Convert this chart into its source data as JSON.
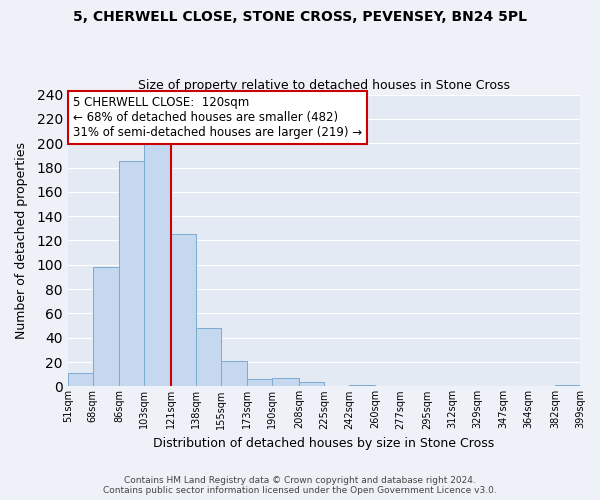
{
  "title": "5, CHERWELL CLOSE, STONE CROSS, PEVENSEY, BN24 5PL",
  "subtitle": "Size of property relative to detached houses in Stone Cross",
  "xlabel": "Distribution of detached houses by size in Stone Cross",
  "ylabel": "Number of detached properties",
  "bar_edges": [
    51,
    68,
    86,
    103,
    121,
    138,
    155,
    173,
    190,
    208,
    225,
    242,
    260,
    277,
    295,
    312,
    329,
    347,
    364,
    382,
    399
  ],
  "bar_heights": [
    11,
    98,
    185,
    201,
    125,
    48,
    21,
    6,
    7,
    4,
    0,
    1,
    0,
    0,
    0,
    0,
    0,
    0,
    0,
    1
  ],
  "bar_color": "#c5d8ef",
  "bar_edgecolor": "#7aabcf",
  "vline_x": 121,
  "vline_color": "#cc0000",
  "annotation_line1": "5 CHERWELL CLOSE:  120sqm",
  "annotation_line2": "← 68% of detached houses are smaller (482)",
  "annotation_line3": "31% of semi-detached houses are larger (219) →",
  "annotation_box_color": "#ffffff",
  "annotation_border_color": "#cc0000",
  "tick_labels": [
    "51sqm",
    "68sqm",
    "86sqm",
    "103sqm",
    "121sqm",
    "138sqm",
    "155sqm",
    "173sqm",
    "190sqm",
    "208sqm",
    "225sqm",
    "242sqm",
    "260sqm",
    "277sqm",
    "295sqm",
    "312sqm",
    "329sqm",
    "347sqm",
    "364sqm",
    "382sqm",
    "399sqm"
  ],
  "ylim": [
    0,
    240
  ],
  "yticks": [
    0,
    20,
    40,
    60,
    80,
    100,
    120,
    140,
    160,
    180,
    200,
    220,
    240
  ],
  "footer1": "Contains HM Land Registry data © Crown copyright and database right 2024.",
  "footer2": "Contains public sector information licensed under the Open Government Licence v3.0.",
  "bg_color": "#eef2f8",
  "plot_bg_color": "#e4eaf4"
}
